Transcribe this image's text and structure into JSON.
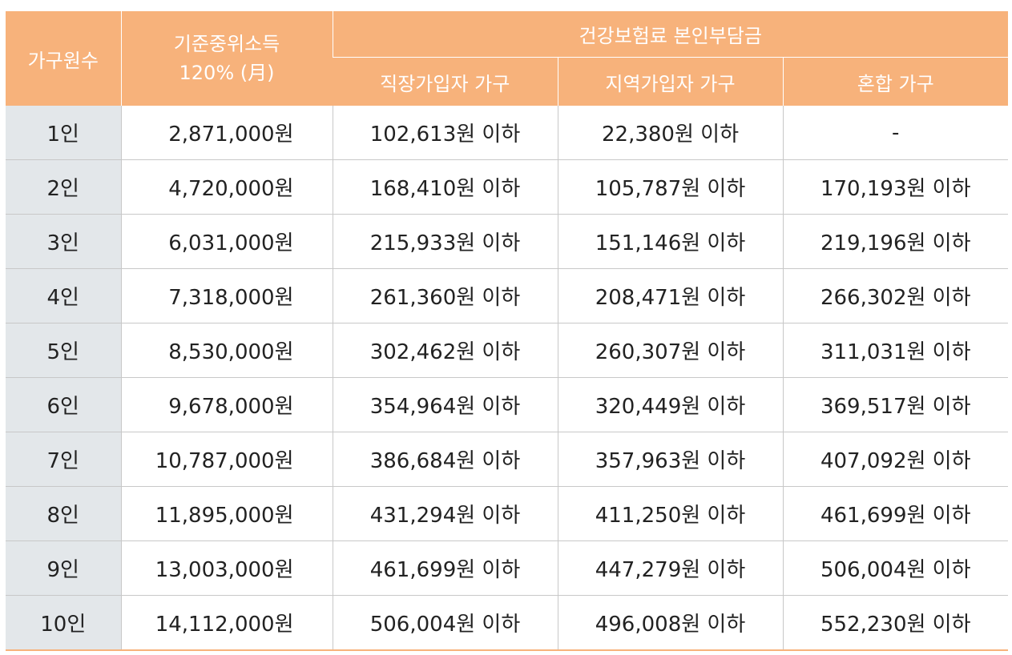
{
  "headers": {
    "household": "가구원수",
    "income_line1": "기준중위소득",
    "income_line2": "120% (月)",
    "premium_group": "건강보험료 본인부담금",
    "workplace": "직장가입자 가구",
    "regional": "지역가입자 가구",
    "mixed": "혼합 가구"
  },
  "rows": [
    {
      "size": "1인",
      "income": "2,871,000원",
      "workplace": "102,613원 이하",
      "regional": "22,380원 이하",
      "mixed": "-"
    },
    {
      "size": "2인",
      "income": "4,720,000원",
      "workplace": "168,410원 이하",
      "regional": "105,787원 이하",
      "mixed": "170,193원 이하"
    },
    {
      "size": "3인",
      "income": "6,031,000원",
      "workplace": "215,933원 이하",
      "regional": "151,146원 이하",
      "mixed": "219,196원 이하"
    },
    {
      "size": "4인",
      "income": "7,318,000원",
      "workplace": "261,360원 이하",
      "regional": "208,471원 이하",
      "mixed": "266,302원 이하"
    },
    {
      "size": "5인",
      "income": "8,530,000원",
      "workplace": "302,462원 이하",
      "regional": "260,307원 이하",
      "mixed": "311,031원 이하"
    },
    {
      "size": "6인",
      "income": "9,678,000원",
      "workplace": "354,964원 이하",
      "regional": "320,449원 이하",
      "mixed": "369,517원 이하"
    },
    {
      "size": "7인",
      "income": "10,787,000원",
      "workplace": "386,684원 이하",
      "regional": "357,963원 이하",
      "mixed": "407,092원 이하"
    },
    {
      "size": "8인",
      "income": "11,895,000원",
      "workplace": "431,294원 이하",
      "regional": "411,250원 이하",
      "mixed": "461,699원 이하"
    },
    {
      "size": "9인",
      "income": "13,003,000원",
      "workplace": "461,699원 이하",
      "regional": "447,279원 이하",
      "mixed": "506,004원 이하"
    },
    {
      "size": "10인",
      "income": "14,112,000원",
      "workplace": "506,004원 이하",
      "regional": "496,008원 이하",
      "mixed": "552,230원 이하"
    }
  ],
  "colors": {
    "header_bg": "#f7b27b",
    "first_col_bg": "#e3e7ea",
    "header_text": "#ffffff"
  }
}
